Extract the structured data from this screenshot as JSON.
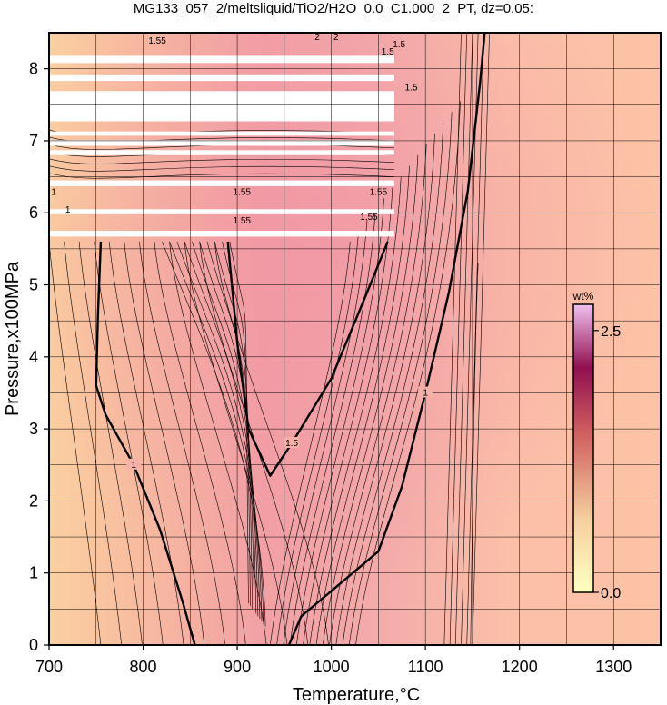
{
  "chart_data": {
    "type": "heatmap",
    "title": "MG133_057_2/meltsliquid/TiO2/H2O_0.0_C1.000_2_PT, dz=0.05:",
    "xlabel": "Temperature,°C",
    "ylabel": "Pressure,x100MPa",
    "xlim": [
      700,
      1350
    ],
    "ylim": [
      0,
      8.5
    ],
    "x_ticks": [
      700,
      800,
      900,
      1000,
      1100,
      1200,
      1300
    ],
    "y_ticks": [
      0,
      1,
      2,
      3,
      4,
      5,
      6,
      7,
      8
    ],
    "grid": true,
    "colorbar": {
      "unit": "wt%",
      "min": 0.0,
      "max": 2.75,
      "tick_values": [
        0.0,
        2.5
      ],
      "tick_labels": [
        "0.0",
        "2.5"
      ],
      "placement": "right-inside",
      "colors": [
        "#ffffc0",
        "#f5d0a0",
        "#d06060",
        "#901050",
        "#f0c0f0"
      ]
    },
    "contour_interval": 0.05,
    "labeled_contours": [
      {
        "level": 1,
        "label": "1",
        "points": [
          [
            755,
            5.6
          ],
          [
            752,
            4.6
          ],
          [
            750,
            3.6
          ],
          [
            760,
            3.2
          ],
          [
            790,
            2.5
          ],
          [
            818,
            1.6
          ],
          [
            842,
            0.6
          ],
          [
            855,
            0
          ]
        ]
      },
      {
        "level": 1.5,
        "label": "1.5",
        "points": [
          [
            890,
            5.6
          ],
          [
            900,
            4.2
          ],
          [
            912,
            3.0
          ],
          [
            935,
            2.35
          ],
          [
            958,
            2.8
          ],
          [
            1000,
            3.7
          ],
          [
            1035,
            4.8
          ],
          [
            1060,
            5.6
          ]
        ]
      },
      {
        "level": 1,
        "label": "1",
        "points": [
          [
            955,
            0
          ],
          [
            968,
            0.4
          ],
          [
            1000,
            0.75
          ],
          [
            1050,
            1.3
          ],
          [
            1075,
            2.2
          ],
          [
            1100,
            3.5
          ],
          [
            1125,
            4.9
          ],
          [
            1145,
            6.3
          ],
          [
            1158,
            7.8
          ],
          [
            1163,
            8.5
          ]
        ]
      }
    ],
    "annotations": [
      "1",
      "1.5",
      "1",
      "1.55",
      "1.55",
      "1.55",
      "1.55",
      "1.55",
      "1.5",
      "1.5",
      "2",
      "2"
    ],
    "no_data_bands": [
      [
        5.67,
        5.75
      ],
      [
        5.98,
        6.05
      ],
      [
        6.37,
        6.45
      ],
      [
        6.8,
        6.87
      ],
      [
        6.93,
        7.01
      ],
      [
        7.07,
        7.13
      ],
      [
        7.27,
        7.69
      ],
      [
        7.83,
        7.91
      ],
      [
        8.08,
        8.18
      ]
    ],
    "no_data_xrange": [
      700,
      1067
    ]
  }
}
